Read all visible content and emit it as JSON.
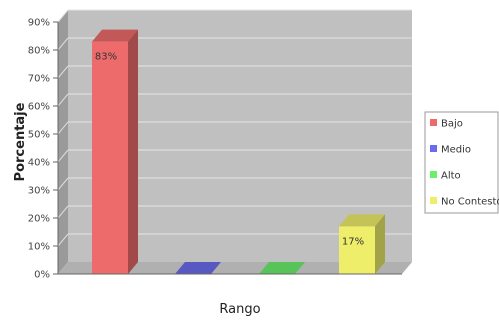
{
  "chart_data": {
    "type": "bar",
    "ylabel": "Porcentaje",
    "xlabel": "Rango",
    "ylim": [
      0,
      90
    ],
    "y_ticks": [
      "0%",
      "10%",
      "20%",
      "30%",
      "40%",
      "50%",
      "60%",
      "70%",
      "80%",
      "90%"
    ],
    "y_tick_values": [
      0,
      10,
      20,
      30,
      40,
      50,
      60,
      70,
      80,
      90
    ],
    "grid": true,
    "style": "3d",
    "legend_position": "right",
    "categories": [
      "Bajo",
      "Medio",
      "Alto",
      "No Contestó"
    ],
    "values": [
      83,
      0,
      0,
      17
    ],
    "data_labels": [
      "83%",
      "",
      "",
      "17%"
    ],
    "colors": [
      "#ee6b6b",
      "#6b6bee",
      "#6bee6b",
      "#eeee6b"
    ],
    "legend": [
      "Bajo",
      "Medio",
      "Alto",
      "No Contestó"
    ]
  }
}
